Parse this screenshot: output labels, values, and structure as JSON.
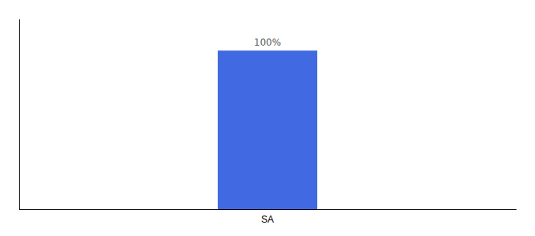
{
  "chart_data": {
    "type": "bar",
    "categories": [
      "SA"
    ],
    "values": [
      100
    ],
    "value_labels": [
      "100%"
    ],
    "data_labels": true,
    "color": "#4169e1",
    "ylim": [
      0,
      120
    ],
    "yticks": [],
    "tick_labels": "x"
  }
}
